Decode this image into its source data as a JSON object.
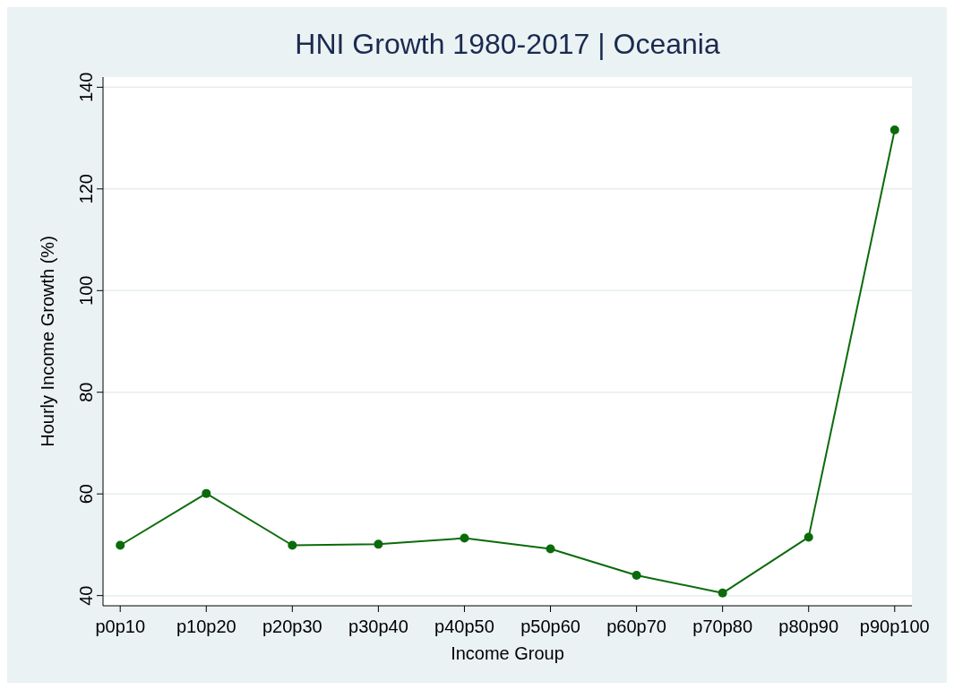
{
  "chart_data": {
    "type": "line",
    "title": "HNI Growth 1980-2017 | Oceania",
    "xlabel": "Income Group",
    "ylabel": "Hourly Income Growth (%)",
    "categories": [
      "p0p10",
      "p10p20",
      "p20p30",
      "p30p40",
      "p40p50",
      "p50p60",
      "p60p70",
      "p70p80",
      "p80p90",
      "p90p100"
    ],
    "series": [
      {
        "color": "#0b6b0b",
        "values": [
          49.9,
          60.1,
          49.9,
          50.1,
          51.3,
          49.2,
          44.0,
          40.5,
          51.5,
          131.6
        ]
      }
    ],
    "ylim": [
      38,
      142
    ],
    "yticks": [
      40,
      60,
      80,
      100,
      120,
      140
    ],
    "grid": "y",
    "marker": "circle",
    "line_style": "solid"
  }
}
